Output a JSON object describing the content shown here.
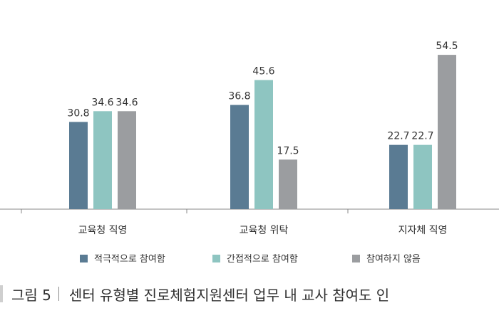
{
  "chart_data": {
    "type": "bar",
    "categories": [
      "교육청 직영",
      "교육청 위탁",
      "지자체 직영"
    ],
    "series": [
      {
        "name": "적극적으로 참여함",
        "values": [
          30.8,
          36.8,
          22.7
        ],
        "color": "#5a7b93",
        "value_labels": [
          "30.8",
          "36.8",
          "22.7"
        ]
      },
      {
        "name": "간접적으로 참여함",
        "values": [
          34.6,
          45.6,
          22.7
        ],
        "color": "#8ec5c1",
        "value_labels": [
          "34.6",
          "45.6",
          "22.7"
        ]
      },
      {
        "name": "참여하지 않음",
        "values": [
          34.6,
          17.5,
          54.5
        ],
        "color": "#9b9da0",
        "value_labels": [
          "34.6",
          "17.5",
          "54.5"
        ]
      }
    ],
    "ylim": [
      0,
      70
    ],
    "grid": false,
    "legend_position": "bottom"
  },
  "caption": {
    "figure_label": "그림 5",
    "title": "센터 유형별 진로체험지원센터 업무 내 교사 참여도 인"
  },
  "colors": {
    "axis": "#888888",
    "caption_bar": "#cfcfcf"
  }
}
